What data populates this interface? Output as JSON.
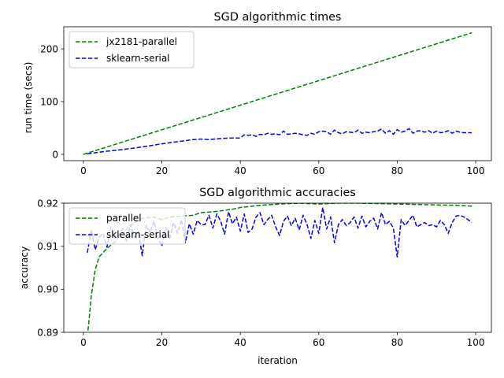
{
  "chart_data": [
    {
      "type": "line",
      "title": "SGD algorithmic times",
      "xlabel": "",
      "ylabel": "run time (secs)",
      "xlim": [
        -5,
        104
      ],
      "ylim": [
        -12,
        242
      ],
      "xticks": [
        0,
        20,
        40,
        60,
        80,
        100
      ],
      "yticks": [
        0,
        100,
        200
      ],
      "legend_position": "upper-left",
      "line_style": "dashed",
      "series": [
        {
          "name": "jx2181-parallel",
          "color": "#008000",
          "x": [
            0,
            10,
            20,
            30,
            40,
            50,
            60,
            70,
            80,
            90,
            99
          ],
          "y": [
            0,
            23.3,
            46.6,
            69.9,
            93.2,
            116.5,
            139.8,
            163.1,
            186.4,
            209.7,
            230.7
          ]
        },
        {
          "name": "sklearn-serial",
          "color": "#0000ff",
          "x": [
            1,
            3,
            6,
            10,
            15,
            20,
            25,
            28,
            30,
            32,
            35,
            38,
            40,
            41,
            42,
            43,
            44,
            45,
            46,
            47,
            48,
            49,
            50,
            51,
            52,
            53,
            54,
            55,
            56,
            57,
            58,
            59,
            60,
            61,
            62,
            63,
            64,
            65,
            66,
            67,
            68,
            69,
            70,
            71,
            72,
            73,
            74,
            75,
            76,
            77,
            78,
            79,
            80,
            81,
            82,
            83,
            84,
            85,
            86,
            87,
            88,
            89,
            90,
            91,
            92,
            93,
            94,
            95,
            96,
            97,
            98,
            99
          ],
          "y": [
            1,
            3,
            6,
            9,
            14,
            20,
            25,
            28,
            29,
            28,
            30,
            31,
            31,
            37,
            36,
            37,
            34,
            38,
            37,
            40,
            38,
            39,
            37,
            44,
            38,
            39,
            40,
            39,
            37,
            36,
            40,
            38,
            43,
            44,
            43,
            38,
            46,
            41,
            39,
            43,
            42,
            41,
            46,
            40,
            42,
            41,
            43,
            44,
            48,
            40,
            45,
            38,
            47,
            42,
            44,
            49,
            40,
            44,
            45,
            42,
            45,
            40,
            44,
            41,
            42,
            45,
            40,
            44,
            42,
            41,
            41,
            41
          ]
        }
      ]
    },
    {
      "type": "line",
      "title": "SGD algorithmic accuracies",
      "xlabel": "iteration",
      "ylabel": "accuracy",
      "xlim": [
        -5,
        104
      ],
      "ylim": [
        0.89,
        0.92
      ],
      "xticks": [
        0,
        20,
        40,
        60,
        80,
        100
      ],
      "yticks": [
        0.89,
        0.9,
        0.91,
        0.92
      ],
      "ytick_labels": [
        "0.89",
        "0.90",
        "0.91",
        "0.92"
      ],
      "legend_position": "upper-left",
      "line_style": "dashed",
      "series": [
        {
          "name": "parallel",
          "color": "#008000",
          "x": [
            1,
            1.5,
            2,
            3,
            4,
            5,
            6,
            8,
            10,
            12,
            15,
            18,
            20,
            22,
            25,
            28,
            30,
            33,
            35,
            38,
            40,
            45,
            50,
            55,
            60,
            65,
            70,
            75,
            80,
            85,
            90,
            95,
            99
          ],
          "y": [
            0.889,
            0.8935,
            0.8985,
            0.9045,
            0.9075,
            0.9085,
            0.9095,
            0.911,
            0.913,
            0.9148,
            0.9165,
            0.9168,
            0.9162,
            0.9168,
            0.917,
            0.9172,
            0.9178,
            0.918,
            0.9182,
            0.9186,
            0.919,
            0.9195,
            0.9198,
            0.92,
            0.9198,
            0.92,
            0.92,
            0.9199,
            0.9198,
            0.9197,
            0.9196,
            0.9195,
            0.9193
          ]
        },
        {
          "name": "sklearn-serial",
          "color": "#0000ff",
          "x": [
            1,
            2,
            3,
            4,
            5,
            6,
            7,
            8,
            9,
            10,
            11,
            12,
            13,
            14,
            15,
            16,
            17,
            18,
            19,
            20,
            21,
            22,
            23,
            24,
            25,
            26,
            27,
            28,
            29,
            30,
            31,
            32,
            33,
            34,
            35,
            36,
            37,
            38,
            39,
            40,
            41,
            42,
            43,
            44,
            45,
            46,
            47,
            48,
            49,
            50,
            51,
            52,
            53,
            54,
            55,
            56,
            57,
            58,
            59,
            60,
            61,
            62,
            63,
            64,
            65,
            66,
            67,
            68,
            69,
            70,
            71,
            72,
            73,
            74,
            75,
            76,
            77,
            78,
            79,
            80,
            81,
            82,
            83,
            84,
            85,
            86,
            87,
            88,
            89,
            90,
            91,
            92,
            93,
            94,
            95,
            96,
            97,
            98,
            99
          ],
          "y": [
            0.9085,
            0.9138,
            0.9092,
            0.912,
            0.913,
            0.9098,
            0.9145,
            0.9118,
            0.9125,
            0.914,
            0.9112,
            0.915,
            0.912,
            0.9135,
            0.9078,
            0.9148,
            0.9132,
            0.9158,
            0.912,
            0.91,
            0.9145,
            0.9118,
            0.9155,
            0.913,
            0.9162,
            0.9108,
            0.9152,
            0.9128,
            0.916,
            0.915,
            0.915,
            0.9172,
            0.9142,
            0.9175,
            0.9158,
            0.9128,
            0.918,
            0.9152,
            0.9168,
            0.9135,
            0.9175,
            0.9132,
            0.914,
            0.9168,
            0.9178,
            0.915,
            0.9162,
            0.9172,
            0.9145,
            0.9125,
            0.9158,
            0.917,
            0.9148,
            0.9165,
            0.9138,
            0.9172,
            0.915,
            0.9118,
            0.916,
            0.913,
            0.919,
            0.914,
            0.9168,
            0.9108,
            0.915,
            0.9162,
            0.9148,
            0.9155,
            0.9168,
            0.9142,
            0.917,
            0.9145,
            0.9158,
            0.9165,
            0.914,
            0.9178,
            0.915,
            0.9158,
            0.9142,
            0.9075,
            0.9162,
            0.9148,
            0.916,
            0.9172,
            0.9145,
            0.915,
            0.9155,
            0.9148,
            0.915,
            0.9145,
            0.916,
            0.915,
            0.913,
            0.9155,
            0.917,
            0.9172,
            0.9168,
            0.9162,
            0.9155
          ]
        }
      ]
    }
  ]
}
